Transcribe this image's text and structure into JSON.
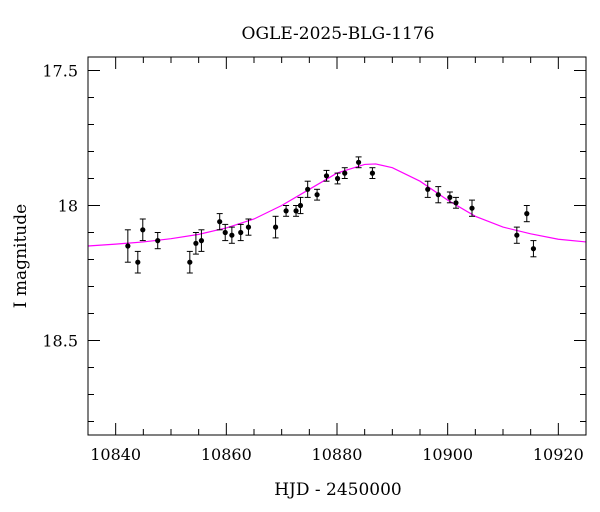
{
  "chart_data": {
    "type": "scatter",
    "title": "OGLE-2025-BLG-1176",
    "xlabel": "HJD - 2450000",
    "ylabel": "I magnitude",
    "xlim": [
      10835,
      10925
    ],
    "ylim": [
      18.85,
      17.45
    ],
    "y_inverted": true,
    "grid": false,
    "xticks": {
      "major": [
        10840,
        10860,
        10880,
        10900,
        10920
      ],
      "labels": [
        "10840",
        "10860",
        "10880",
        "10900",
        "10920"
      ],
      "minor_step": 5
    },
    "yticks": {
      "major": [
        17.5,
        18,
        18.5
      ],
      "labels": [
        "17.5",
        "18",
        "18.5"
      ],
      "minor_step": 0.1
    },
    "point_color": "#000000",
    "model_color": "#ff00ff",
    "series": [
      {
        "x": [
          10842.2,
          10844.0,
          10844.9,
          10847.6,
          10853.4,
          10854.5,
          10855.5,
          10858.8,
          10859.8,
          10861.0,
          10862.6,
          10864.0,
          10868.9,
          10870.8,
          10872.6,
          10873.4,
          10874.7,
          10876.4,
          10878.1,
          10880.1,
          10881.4,
          10883.9,
          10886.4,
          10896.4,
          10898.3,
          10900.4,
          10901.5,
          10904.4,
          10912.5,
          10914.3,
          10915.5
        ],
        "y": [
          18.15,
          18.21,
          18.09,
          18.13,
          18.21,
          18.14,
          18.13,
          18.06,
          18.1,
          18.11,
          18.1,
          18.08,
          18.08,
          18.02,
          18.02,
          18.0,
          17.94,
          17.96,
          17.89,
          17.9,
          17.88,
          17.84,
          17.88,
          17.94,
          17.96,
          17.97,
          17.99,
          18.01,
          18.11,
          18.03,
          18.16
        ],
        "yerr": [
          0.06,
          0.04,
          0.04,
          0.03,
          0.04,
          0.04,
          0.04,
          0.03,
          0.03,
          0.03,
          0.03,
          0.03,
          0.04,
          0.02,
          0.02,
          0.03,
          0.03,
          0.02,
          0.02,
          0.02,
          0.02,
          0.02,
          0.02,
          0.03,
          0.03,
          0.02,
          0.02,
          0.03,
          0.03,
          0.03,
          0.03
        ]
      }
    ],
    "model": {
      "type": "line",
      "x": [
        10835,
        10840,
        10845,
        10850,
        10855,
        10860,
        10865,
        10870,
        10875,
        10880,
        10885,
        10887,
        10890,
        10895,
        10900,
        10905,
        10910,
        10915,
        10920,
        10925
      ],
      "y": [
        18.15,
        18.143,
        18.135,
        18.123,
        18.107,
        18.083,
        18.05,
        18.0,
        17.94,
        17.88,
        17.848,
        17.846,
        17.86,
        17.91,
        17.98,
        18.04,
        18.08,
        18.105,
        18.125,
        18.135
      ]
    }
  }
}
